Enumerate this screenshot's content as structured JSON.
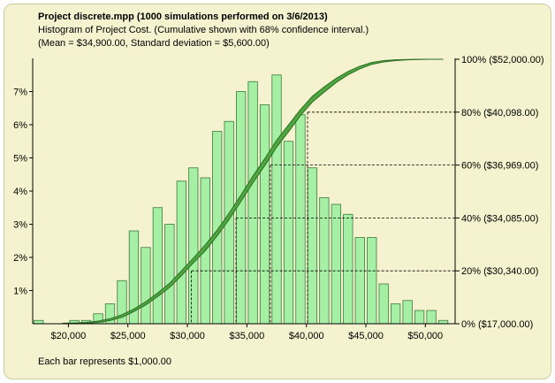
{
  "header": {
    "title": "Project discrete.mpp (1000 simulations performed on 3/6/2013)",
    "subtitle": "Histogram of Project Cost.  (Cumulative shown with 68% confidence interval.)",
    "stats": "(Mean = $34,900.00, Standard deviation = $5,600.00)"
  },
  "footnote": "Each bar represents $1,000.00",
  "colors": {
    "background": "#f5f3cf",
    "bar_fill": "#a6f0a6",
    "bar_stroke": "#3a7a3a",
    "cumulative_band": "#4fa63f",
    "cumulative_edge": "#2d6e27"
  },
  "chart_data": {
    "type": "bar",
    "xlim": [
      17000,
      52500
    ],
    "ylim": [
      0,
      8
    ],
    "bin_width": 1000,
    "x_ticks": [
      20000,
      25000,
      30000,
      35000,
      40000,
      45000,
      50000
    ],
    "x_tick_labels": [
      "$20,000",
      "$25,000",
      "$30,000",
      "$35,000",
      "$40,000",
      "$45,000",
      "$50,000"
    ],
    "y_ticks": [
      1,
      2,
      3,
      4,
      5,
      6,
      7
    ],
    "y_tick_labels": [
      "1%",
      "2%",
      "3%",
      "4%",
      "5%",
      "6%",
      "7%"
    ],
    "histogram": {
      "bin_centers": [
        17500,
        18500,
        19500,
        20500,
        21500,
        22500,
        23500,
        24500,
        25500,
        26500,
        27500,
        28500,
        29500,
        30500,
        31500,
        32500,
        33500,
        34500,
        35500,
        36500,
        37500,
        38500,
        39500,
        40500,
        41500,
        42500,
        43500,
        44500,
        45500,
        46500,
        47500,
        48500,
        49500,
        50500,
        51500
      ],
      "values": [
        0.1,
        0.0,
        0.0,
        0.1,
        0.1,
        0.3,
        0.6,
        1.3,
        2.8,
        2.3,
        3.5,
        3.0,
        4.3,
        4.7,
        4.4,
        5.8,
        6.1,
        7.0,
        7.3,
        6.6,
        7.5,
        5.5,
        6.3,
        4.7,
        3.8,
        3.6,
        3.3,
        2.6,
        2.6,
        1.2,
        0.6,
        0.7,
        0.4,
        0.4,
        0.1
      ]
    },
    "cumulative": {
      "x": [
        19500,
        20500,
        21500,
        22500,
        23500,
        24500,
        25500,
        26500,
        27500,
        28500,
        29500,
        30500,
        31500,
        32500,
        33500,
        34500,
        35500,
        36500,
        37500,
        38500,
        39500,
        40500,
        41500,
        42500,
        43500,
        44500,
        45500,
        46500,
        47500,
        48500,
        49500,
        50500,
        51500
      ],
      "lower_pct": [
        0,
        0.1,
        0.2,
        0.5,
        1.2,
        2.4,
        4.6,
        7.1,
        10.3,
        13.7,
        18.2,
        23.0,
        27.6,
        33.2,
        39.4,
        46.2,
        53.2,
        59.8,
        66.8,
        72.6,
        78.7,
        83.8,
        87.6,
        91.2,
        94.1,
        96.4,
        98.1,
        99.0,
        99.5,
        99.8,
        99.9,
        100,
        100
      ],
      "upper_pct": [
        0.2,
        0.3,
        0.5,
        1.0,
        1.9,
        3.4,
        5.6,
        8.3,
        11.6,
        15.3,
        20.0,
        24.8,
        29.8,
        35.4,
        41.8,
        48.6,
        55.8,
        62.4,
        69.4,
        75.2,
        81.0,
        86.0,
        89.6,
        92.8,
        95.4,
        97.4,
        98.8,
        99.5,
        99.8,
        99.9,
        100,
        100,
        100
      ]
    },
    "percentile_markers": [
      {
        "label": "0% ($17,000.00)",
        "pct": 0,
        "value": 17000
      },
      {
        "label": "20% ($30,340.00)",
        "pct": 20,
        "value": 30340
      },
      {
        "label": "40% ($34,085.00)",
        "pct": 40,
        "value": 34085
      },
      {
        "label": "60% ($36,969.00)",
        "pct": 60,
        "value": 36969
      },
      {
        "label": "80% ($40,098.00)",
        "pct": 80,
        "value": 40098
      },
      {
        "label": "100% ($52,000.00)",
        "pct": 100,
        "value": 52000
      }
    ],
    "grid": false,
    "legend": "none"
  }
}
